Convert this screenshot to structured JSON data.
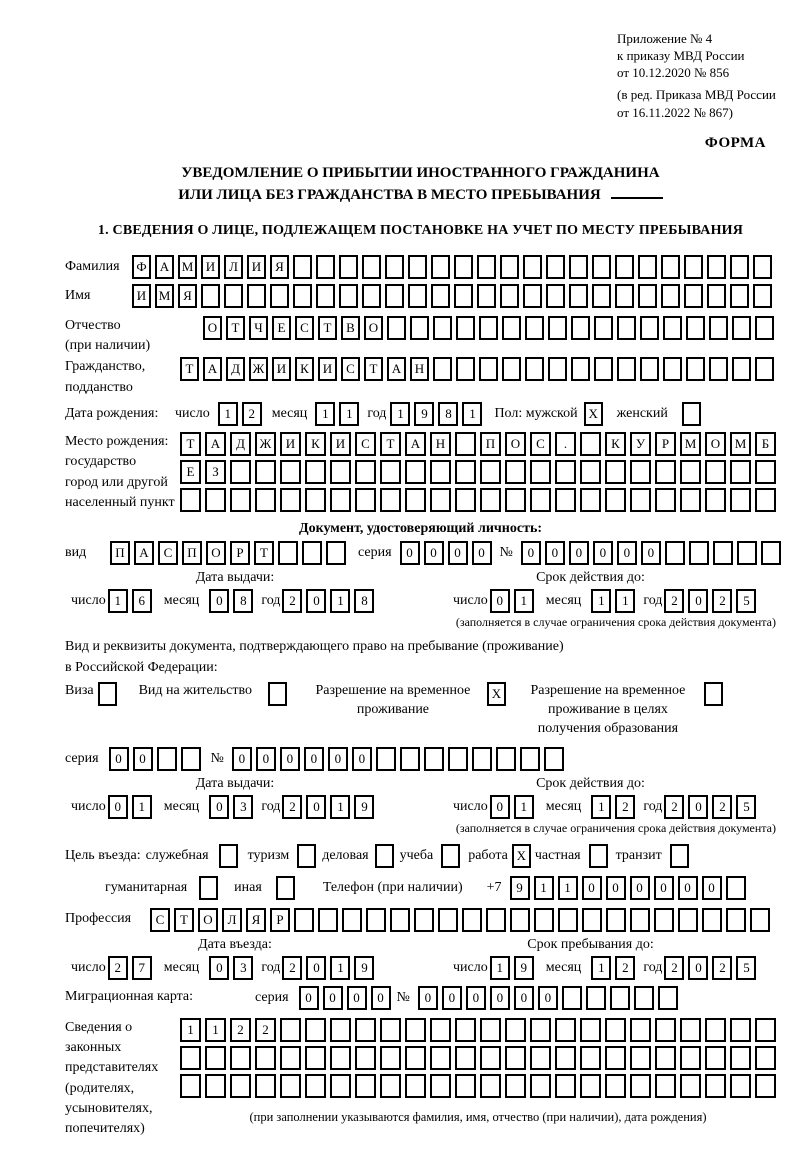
{
  "header": {
    "lines": [
      "Приложение № 4",
      "к приказу МВД России",
      "от 10.12.2020 № 856"
    ],
    "note_lines": [
      "(в ред. Приказа МВД России",
      "от 16.11.2022 № 867)"
    ],
    "forma": "ФОРМА"
  },
  "title": {
    "line1": "УВЕДОМЛЕНИЕ О ПРИБЫТИИ ИНОСТРАННОГО ГРАЖДАНИНА",
    "line2": "ИЛИ ЛИЦА БЕЗ ГРАЖДАНСТВА В МЕСТО ПРЕБЫВАНИЯ"
  },
  "section1_title": "1. СВЕДЕНИЯ О ЛИЦЕ, ПОДЛЕЖАЩЕМ ПОСТАНОВКЕ НА УЧЕТ ПО МЕСТУ ПРЕБЫВАНИЯ",
  "person": {
    "surname": {
      "label": "Фамилия",
      "grid": {
        "v": "ФАМИЛИЯ",
        "n": 28
      }
    },
    "firstname": {
      "label": "Имя",
      "grid": {
        "v": "ИМЯ",
        "n": 28
      }
    },
    "patronymic": {
      "label": "Отчество",
      "label2": "(при наличии)",
      "grid": {
        "v": "ОТЧЕСТВО",
        "n": 25
      }
    },
    "citizenship": {
      "label": "Гражданство,",
      "label2": "подданство",
      "grid": {
        "v": "ТАДЖИКИСТАН",
        "n": 26
      }
    },
    "birth_date": {
      "label": "Дата рождения:",
      "day_label": "число",
      "day": {
        "v": "12",
        "n": 2
      },
      "month_label": "месяц",
      "month": {
        "v": "11",
        "n": 2
      },
      "year_label": "год",
      "year": {
        "v": "1981",
        "n": 4
      }
    },
    "sex": {
      "label": "Пол: мужской",
      "male_box": {
        "v": "X",
        "n": 1
      },
      "female_label": "женский",
      "female_box": {
        "v": "",
        "n": 1
      }
    },
    "birth_place": {
      "label_lines": [
        "Место рождения:",
        "государство",
        "город или другой",
        "населенный пункт"
      ],
      "row1": {
        "v": "ТАДЖИКИСТАН ПОС. КУРМОМБ",
        "n": 24
      },
      "row2": {
        "v": "ЕЗ",
        "n": 24
      },
      "row3": {
        "v": "",
        "n": 24
      }
    }
  },
  "identity_doc": {
    "section_title": "Документ, удостоверяющий личность:",
    "kind_label": "вид",
    "kind": {
      "v": "ПАСПОРТ",
      "n": 10
    },
    "series_label": "серия",
    "series": {
      "v": "0000",
      "n": 4
    },
    "number_label": "№",
    "number": {
      "v": "000000",
      "n": 11
    },
    "issue_title": "Дата выдачи:",
    "issue": {
      "day_label": "число",
      "day": {
        "v": "16",
        "n": 2
      },
      "month_label": "месяц",
      "month": {
        "v": "08",
        "n": 2
      },
      "year_label": "год",
      "year": {
        "v": "2018",
        "n": 4
      }
    },
    "expiry_title": "Срок действия до:",
    "expiry": {
      "day_label": "число",
      "day": {
        "v": "01",
        "n": 2
      },
      "month_label": "месяц",
      "month": {
        "v": "11",
        "n": 2
      },
      "year_label": "год",
      "year": {
        "v": "2025",
        "n": 4
      }
    },
    "expiry_note": "(заполняется в случае ограничения срока действия документа)"
  },
  "residence_doc": {
    "intro_line1": "Вид и реквизиты документа, подтверждающего право на пребывание (проживание)",
    "intro_line2": "в Российской Федерации:",
    "options": [
      {
        "label": "Виза",
        "box": {
          "v": "",
          "n": 1
        }
      },
      {
        "label": "Вид на жительство",
        "box": {
          "v": "",
          "n": 1
        }
      },
      {
        "label": "Разрешение на временное проживание",
        "box": {
          "v": "X",
          "n": 1
        }
      },
      {
        "label": "Разрешение на временное проживание в целях получения образования",
        "box": {
          "v": "",
          "n": 1
        }
      }
    ],
    "series_label": "серия",
    "series": {
      "v": "00",
      "n": 4
    },
    "number_label": "№",
    "number": {
      "v": "000000",
      "n": 14
    },
    "issue_title": "Дата выдачи:",
    "issue": {
      "day_label": "число",
      "day": {
        "v": "01",
        "n": 2
      },
      "month_label": "месяц",
      "month": {
        "v": "03",
        "n": 2
      },
      "year_label": "год",
      "year": {
        "v": "2019",
        "n": 4
      }
    },
    "expiry_title": "Срок действия до:",
    "expiry": {
      "day_label": "число",
      "day": {
        "v": "01",
        "n": 2
      },
      "month_label": "месяц",
      "month": {
        "v": "12",
        "n": 2
      },
      "year_label": "год",
      "year": {
        "v": "2025",
        "n": 4
      }
    },
    "expiry_note": "(заполняется в случае ограничения срока действия документа)"
  },
  "visit": {
    "purpose_label": "Цель въезда:",
    "purposes_row1": [
      {
        "label": "служебная",
        "box": {
          "v": "",
          "n": 1
        }
      },
      {
        "label": "туризм",
        "box": {
          "v": "",
          "n": 1
        }
      },
      {
        "label": "деловая",
        "box": {
          "v": "",
          "n": 1
        }
      },
      {
        "label": "учеба",
        "box": {
          "v": "",
          "n": 1
        }
      },
      {
        "label": "работа",
        "box": {
          "v": "X",
          "n": 1
        }
      },
      {
        "label": "частная",
        "box": {
          "v": "",
          "n": 1
        }
      },
      {
        "label": "транзит",
        "box": {
          "v": "",
          "n": 1
        }
      }
    ],
    "purposes_row2": [
      {
        "label": "гуманитарная",
        "box": {
          "v": "",
          "n": 1
        }
      },
      {
        "label": "иная",
        "box": {
          "v": "",
          "n": 1
        }
      }
    ],
    "phone_label": "Телефон (при наличии)",
    "phone_prefix": "+7",
    "phone": {
      "v": "911000000",
      "n": 10
    },
    "profession_label": "Профессия",
    "profession": {
      "v": "СТОЛЯР",
      "n": 26
    },
    "entry_title": "Дата въезда:",
    "entry": {
      "day_label": "число",
      "day": {
        "v": "27",
        "n": 2
      },
      "month_label": "месяц",
      "month": {
        "v": "03",
        "n": 2
      },
      "year_label": "год",
      "year": {
        "v": "2019",
        "n": 4
      }
    },
    "stay_title": "Срок пребывания до:",
    "stay": {
      "day_label": "число",
      "day": {
        "v": "19",
        "n": 2
      },
      "month_label": "месяц",
      "month": {
        "v": "12",
        "n": 2
      },
      "year_label": "год",
      "year": {
        "v": "2025",
        "n": 4
      }
    }
  },
  "migration_card": {
    "label": "Миграционная карта:",
    "series_label": "серия",
    "series": {
      "v": "0000",
      "n": 4
    },
    "number_label": "№",
    "number": {
      "v": "000000",
      "n": 11
    }
  },
  "representatives": {
    "label_lines": [
      "Сведения о",
      "законных",
      "представителях",
      "(родителях,",
      "усыновителях,",
      "попечителях)"
    ],
    "row1": {
      "v": "1122",
      "n": 24
    },
    "row2": {
      "v": "",
      "n": 24
    },
    "row3": {
      "v": "",
      "n": 24
    },
    "note": "(при заполнении указываются фамилия, имя, отчество (при наличии), дата рождения)"
  }
}
